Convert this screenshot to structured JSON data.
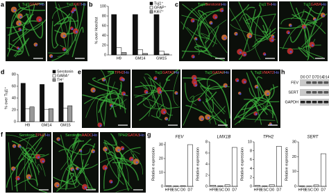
{
  "chart_data": [
    {
      "type": "bar",
      "y_label": "% over Hoechst",
      "categories": [
        "H9",
        "GM14",
        "GM15"
      ],
      "series": [
        {
          "name": "Tuj1⁺",
          "color": "#111111",
          "values": [
            83,
            83,
            83
          ]
        },
        {
          "name": "GFAP⁺",
          "color": "#ffffff",
          "values": [
            15,
            11,
            8
          ]
        },
        {
          "name": "Ki67⁺",
          "color": "#999999",
          "values": [
            5,
            3,
            2
          ]
        }
      ],
      "ylim": [
        0,
        100
      ],
      "yticks": [
        0,
        20,
        40,
        60,
        80,
        100
      ],
      "legend": "upper right"
    },
    {
      "type": "bar",
      "y_label": "% over Tuj1⁺",
      "categories": [
        "H9",
        "GM14",
        "GM15"
      ],
      "series": [
        {
          "name": "Serotonin",
          "color": "#111111",
          "values": [
            65,
            63,
            66
          ]
        },
        {
          "name": "GABA⁺",
          "color": "#ffffff",
          "values": [
            22,
            21,
            23
          ]
        },
        {
          "name": "TH⁺",
          "color": "#999999",
          "values": [
            25,
            22,
            27
          ]
        }
      ],
      "ylim": [
        0,
        80
      ],
      "yticks": [
        0,
        20,
        40,
        60,
        80
      ],
      "legend": "upper right"
    },
    {
      "type": "bar",
      "title": "FEV",
      "y_label": "Relative expression",
      "categories": [
        "HFB",
        "ESC",
        "D0",
        "D7"
      ],
      "values": [
        0.5,
        0.3,
        0.5,
        30
      ],
      "color": "#ffffff",
      "ylim": [
        0,
        32
      ],
      "yticks": [
        0,
        10,
        20,
        30
      ]
    },
    {
      "type": "bar",
      "title": "LMX1B",
      "y_label": "Relative expression",
      "categories": [
        "HFB",
        "ESC",
        "D0",
        "D7"
      ],
      "values": [
        0.2,
        0.1,
        0.3,
        7
      ],
      "color": "#ffffff",
      "ylim": [
        0,
        8
      ],
      "yticks": [
        0,
        2,
        4,
        6,
        8
      ]
    },
    {
      "type": "bar",
      "title": "TPH2",
      "y_label": "Relative expression",
      "categories": [
        "HFB",
        "ESC",
        "D0",
        "D7"
      ],
      "values": [
        0.2,
        0.1,
        0.4,
        9
      ],
      "color": "#ffffff",
      "ylim": [
        0,
        10
      ],
      "yticks": [
        0,
        2,
        4,
        6,
        8,
        10
      ]
    },
    {
      "type": "bar",
      "title": "SERT",
      "y_label": "Relative expression",
      "categories": [
        "HFB",
        "ESC",
        "D0",
        "D7"
      ],
      "values": [
        0.3,
        0.2,
        1,
        22
      ],
      "color": "#ffffff",
      "ylim": [
        0,
        30
      ],
      "yticks": [
        0,
        10,
        20,
        30
      ]
    }
  ],
  "figure": {
    "panel_letters": [
      "a",
      "b",
      "c",
      "d",
      "e",
      "f",
      "g",
      "h"
    ],
    "images": [
      {
        "label": [
          {
            "text": "Tuj1",
            "color": "#44dd44"
          },
          {
            "text": "GFAP",
            "color": "#ff4444"
          },
          {
            "text": "Ho",
            "color": "#7777ff"
          }
        ]
      },
      {
        "label": [
          {
            "text": "Tuj1",
            "color": "#44dd44"
          },
          {
            "text": "Ki67",
            "color": "#ff4444"
          },
          {
            "text": "Ho",
            "color": "#7777ff"
          }
        ]
      },
      {
        "label": [
          {
            "text": "Tuj1",
            "color": "#44dd44"
          },
          {
            "text": "Serotonin",
            "color": "#ff4444"
          },
          {
            "text": "Ho",
            "color": "#7777ff"
          }
        ]
      },
      {
        "label": [
          {
            "text": "Tuj1",
            "color": "#44dd44"
          },
          {
            "text": "TH",
            "color": "#ff4444"
          },
          {
            "text": "Ho",
            "color": "#7777ff"
          }
        ]
      },
      {
        "label": [
          {
            "text": "Tuj1",
            "color": "#44dd44"
          },
          {
            "text": "GABA",
            "color": "#ff4444"
          },
          {
            "text": "Ho",
            "color": "#7777ff"
          }
        ]
      },
      {
        "label": [
          {
            "text": "Tuj1",
            "color": "#44dd44"
          },
          {
            "text": "TPH2",
            "color": "#ff4444"
          },
          {
            "text": "Ho",
            "color": "#7777ff"
          }
        ]
      },
      {
        "label": [
          {
            "text": "Tuj1",
            "color": "#44dd44"
          },
          {
            "text": "GATA3",
            "color": "#ff4444"
          },
          {
            "text": "Ho",
            "color": "#7777ff"
          }
        ]
      },
      {
        "label": [
          {
            "text": "Tuj1",
            "color": "#44dd44"
          },
          {
            "text": "GATA2",
            "color": "#ff4444"
          },
          {
            "text": "Ho",
            "color": "#7777ff"
          }
        ]
      },
      {
        "label": [
          {
            "text": "Tuj1",
            "color": "#44dd44"
          },
          {
            "text": "VMAT2",
            "color": "#ff4444"
          },
          {
            "text": "Ho",
            "color": "#7777ff"
          }
        ]
      },
      {
        "label": [
          {
            "text": "Serotonin",
            "color": "#44dd44"
          },
          {
            "text": "TPH2",
            "color": "#ff4444"
          },
          {
            "text": "Ho",
            "color": "#7777ff"
          }
        ]
      },
      {
        "label": [
          {
            "text": "Serotonin",
            "color": "#44dd44"
          },
          {
            "text": "AADC",
            "color": "#ff4444"
          },
          {
            "text": "Ho",
            "color": "#7777ff"
          }
        ]
      },
      {
        "label": [
          {
            "text": "TPH2",
            "color": "#44dd44"
          },
          {
            "text": "GATA3",
            "color": "#ff4444"
          },
          {
            "text": "Ho",
            "color": "#7777ff"
          }
        ]
      }
    ],
    "blot": {
      "lanes": [
        "D0",
        "D7",
        "D7",
        "D14",
        "D14"
      ],
      "rows": [
        "FEV",
        "SERT",
        "GAPDH"
      ]
    }
  }
}
